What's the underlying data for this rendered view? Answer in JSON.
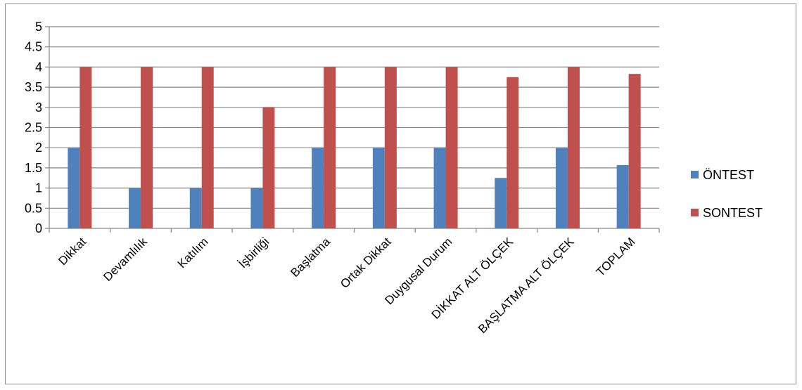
{
  "chart_data": {
    "type": "bar",
    "categories": [
      "Dikkat",
      "Devamlılık",
      "Katılım",
      "İşbirliği",
      "Başlatma",
      "Ortak Dikkat",
      "Duygusal Durum",
      "DİKKAT ALT ÖLÇEK",
      "BAŞLATMA ALT ÖLÇEK",
      "TOPLAM"
    ],
    "series": [
      {
        "name": "ÖNTEST",
        "values": [
          2,
          1,
          1,
          1,
          2,
          2,
          2,
          1.25,
          2,
          1.57
        ],
        "color": "#4f81bd"
      },
      {
        "name": "SONTEST",
        "values": [
          4,
          4,
          4,
          3,
          4,
          4,
          4,
          3.75,
          4,
          3.83
        ],
        "color": "#c0504d"
      }
    ],
    "yticks": [
      "0",
      "0.5",
      "1",
      "1.5",
      "2",
      "2.5",
      "3",
      "3.5",
      "4",
      "4.5",
      "5"
    ],
    "ylim": [
      0,
      5
    ],
    "grid": true,
    "legend_position": "right",
    "title": "",
    "xlabel": "",
    "ylabel": ""
  }
}
